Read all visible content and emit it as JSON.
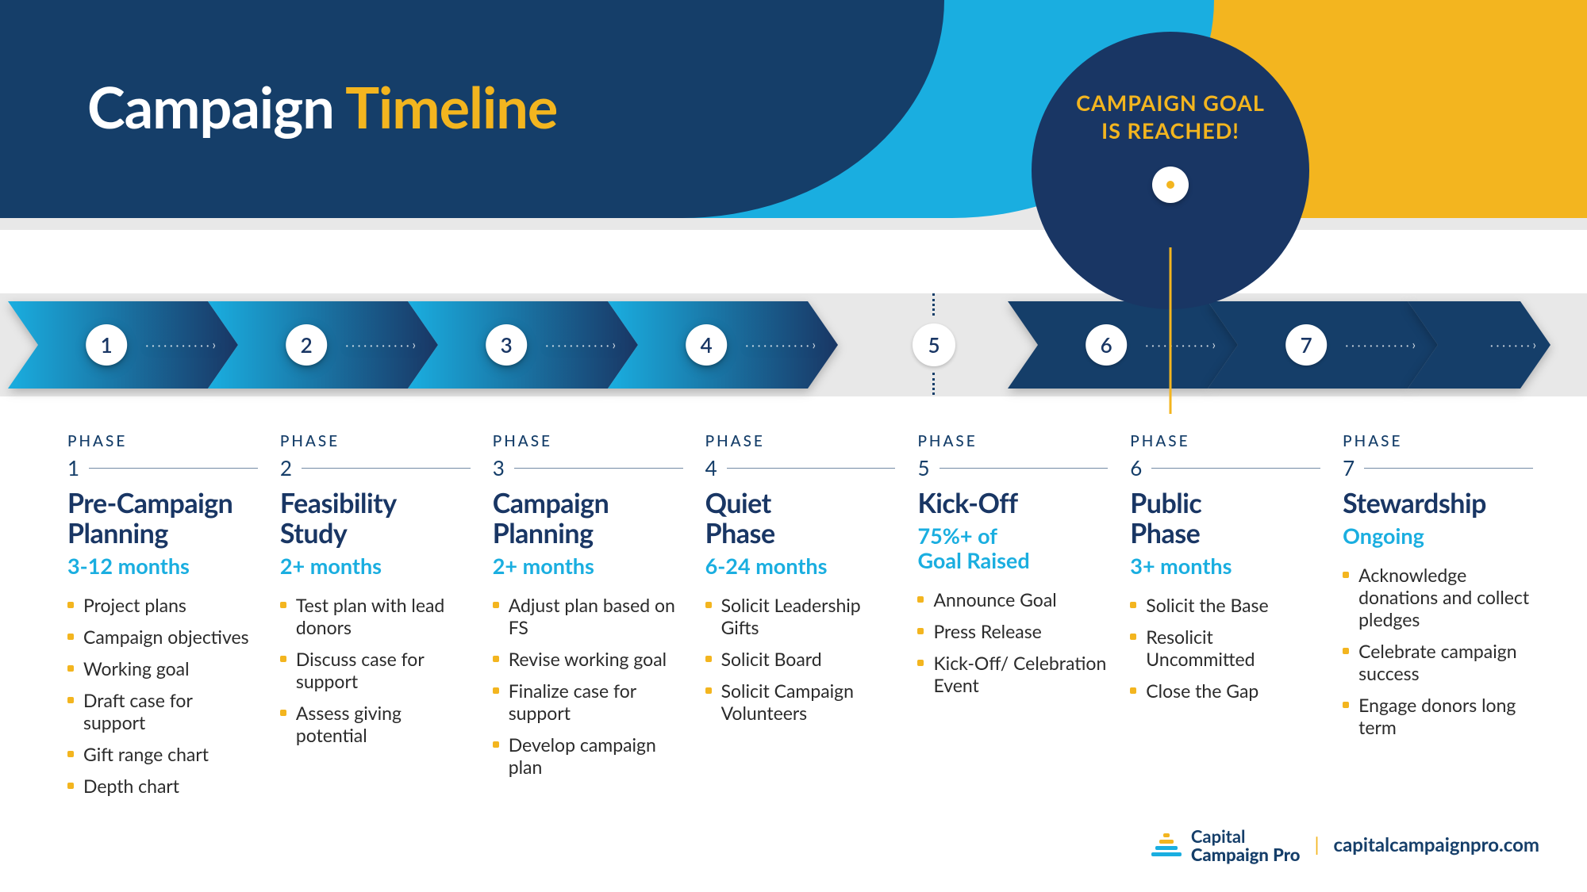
{
  "title": {
    "word1": "Campaign",
    "word2": "Timeline"
  },
  "colors": {
    "dark_blue": "#153e69",
    "navy": "#193664",
    "light_blue": "#1aaee0",
    "yellow": "#f3b51f",
    "grey": "#e8e8e8",
    "white": "#ffffff",
    "text": "#2b2b2b"
  },
  "goal_badge": {
    "line1": "CAMPAIGN GOAL",
    "line2": "IS REACHED!"
  },
  "phase_label": "PHASE",
  "arrows": {
    "group1": {
      "count": 4,
      "gradient_from": "#1aaee0",
      "gradient_to": "#193664"
    },
    "group2": {
      "count": 2,
      "color": "#153e69"
    }
  },
  "phases": [
    {
      "num": "1",
      "title": "Pre-Campaign Planning",
      "duration": "3-12 months",
      "items": [
        "Project plans",
        "Campaign objectives",
        "Working goal",
        "Draft case for support",
        "Gift range chart",
        "Depth chart"
      ]
    },
    {
      "num": "2",
      "title": "Feasibility Study",
      "duration": "2+  months",
      "items": [
        "Test plan with lead donors",
        "Discuss case for support",
        "Assess giving potential"
      ]
    },
    {
      "num": "3",
      "title": "Campaign Planning",
      "duration": "2+  months",
      "items": [
        "Adjust plan based on FS",
        "Revise working goal",
        "Finalize case for support",
        "Develop campaign plan"
      ]
    },
    {
      "num": "4",
      "title": "Quiet Phase",
      "duration": "6-24  months",
      "items": [
        "Solicit Leadership Gifts",
        "Solicit Board",
        "Solicit Campaign Volunteers"
      ]
    },
    {
      "num": "5",
      "title": "Kick-Off",
      "duration": "75%+ of Goal Raised",
      "items": [
        "Announce Goal",
        "Press Release",
        "Kick-Off/ Celebration Event"
      ]
    },
    {
      "num": "6",
      "title": "Public Phase",
      "duration": "3+  months",
      "items": [
        "Solicit the Base",
        "Resolicit Uncommitted",
        "Close the Gap"
      ]
    },
    {
      "num": "7",
      "title": "Stewardship",
      "duration": "Ongoing",
      "items": [
        "Acknowledge donations and collect pledges",
        "Celebrate campaign success",
        "Engage donors long term"
      ]
    }
  ],
  "brand": {
    "name1": "Capital",
    "name2": "Campaign Pro",
    "url": "capitalcampaignpro.com"
  }
}
